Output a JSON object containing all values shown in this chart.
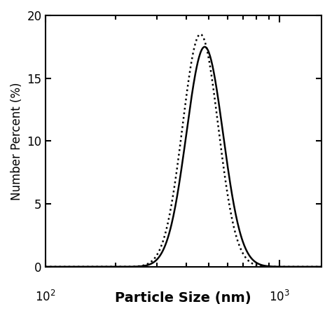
{
  "title": "",
  "xlabel": "Particle Size (nm)",
  "ylabel": "Number Percent (%)",
  "xlim_log": [
    2.0,
    3.18
  ],
  "ylim": [
    0,
    20
  ],
  "yticks": [
    0,
    5,
    10,
    15,
    20
  ],
  "xtick_positions": [
    100,
    1000
  ],
  "solid_color": "#000000",
  "dotted_color": "#000000",
  "solid_peak": 480,
  "solid_peak_val": 17.5,
  "solid_sigma": 0.18,
  "dotted_peak": 460,
  "dotted_peak_val": 18.5,
  "dotted_sigma": 0.175,
  "x_min": 100,
  "x_max": 2000,
  "n_points": 500,
  "linewidth": 1.8,
  "dotted_linewidth": 1.8
}
